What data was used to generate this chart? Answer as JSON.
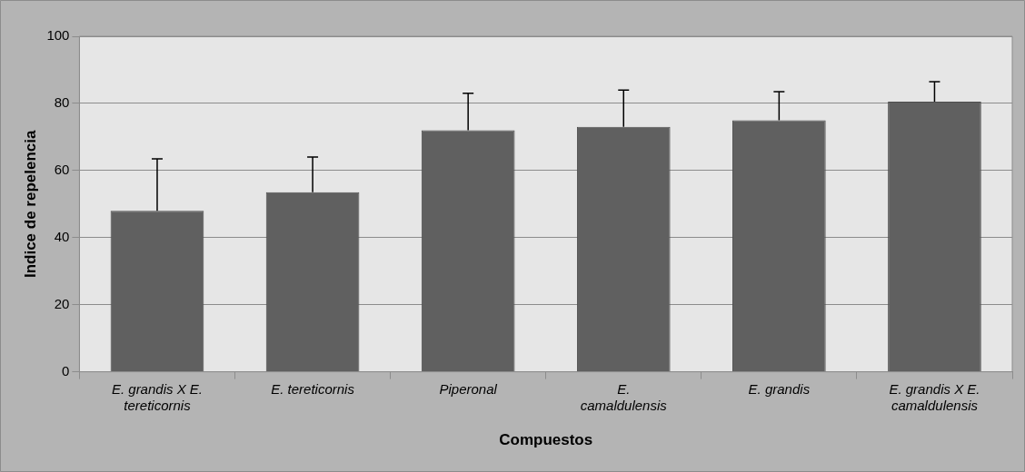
{
  "chart_data": {
    "type": "bar",
    "xlabel": "Compuestos",
    "ylabel": "Indice de repelencia",
    "categories": [
      "E. grandis X E. tereticornis",
      "E. tereticornis",
      "Piperonal",
      "E. camaldulensis",
      "E. grandis",
      "E. grandis X E. camaldulensis"
    ],
    "values": [
      48,
      53.5,
      72,
      73,
      75,
      80.5
    ],
    "errors": [
      [
        48,
        63.5
      ],
      [
        53.5,
        64
      ],
      [
        72,
        83
      ],
      [
        73,
        84
      ],
      [
        75,
        83.5
      ],
      [
        80.5,
        86.5
      ]
    ],
    "color": "#606060",
    "ylim": [
      0,
      100
    ],
    "yticks": [
      0,
      20,
      40,
      60,
      80,
      100
    ],
    "grid": "y",
    "legend": false
  }
}
